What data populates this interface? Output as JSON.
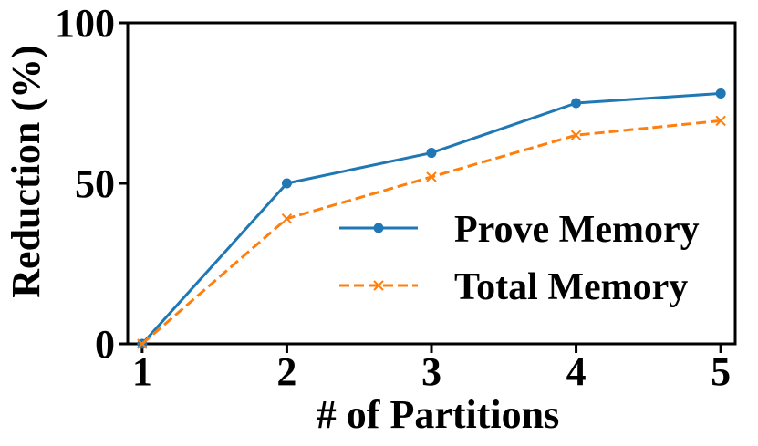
{
  "chart_data": {
    "type": "line",
    "title": "",
    "xlabel": "# of Partitions",
    "ylabel": "Reduction (%)",
    "x": [
      1,
      2,
      3,
      4,
      5
    ],
    "xticks": [
      "1",
      "2",
      "3",
      "4",
      "5"
    ],
    "yticks": [
      "0",
      "50",
      "100"
    ],
    "xlim": [
      0.9,
      5.1
    ],
    "ylim": [
      0,
      100
    ],
    "grid": false,
    "legend_position": "lower-right",
    "series": [
      {
        "name": "Prove Memory",
        "values": [
          0,
          50,
          59.5,
          75,
          78
        ],
        "color": "#1f77b4",
        "line_style": "solid",
        "marker": "circle"
      },
      {
        "name": "Total Memory",
        "values": [
          0,
          39,
          52,
          65,
          69.5
        ],
        "color": "#ff7f0e",
        "line_style": "dashed",
        "marker": "x"
      }
    ]
  }
}
